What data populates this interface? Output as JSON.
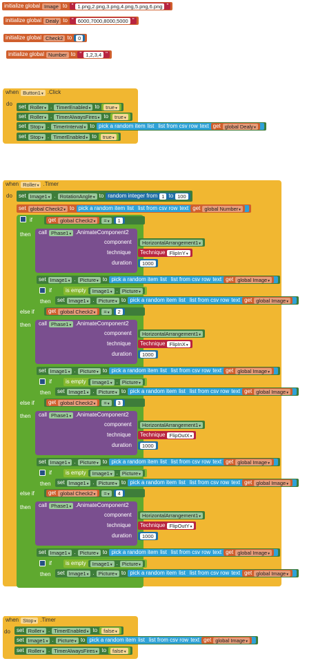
{
  "globals": [
    {
      "prefix": "initialize global",
      "name": "Image",
      "to": "to",
      "value": "1.png,2.png,3.png,4.png,5.png,6.png"
    },
    {
      "prefix": "initialize global",
      "name": "Dealy",
      "to": "to",
      "value": "6000,7000,8000,5000"
    },
    {
      "prefix": "initialize global",
      "name": "Check2",
      "to": "to",
      "value": "0"
    },
    {
      "prefix": "initialize global",
      "name": "Number",
      "to": "to",
      "value": "1,2,3,4"
    }
  ],
  "kw": {
    "when": "when",
    "do": "do",
    "set": "set",
    "to": "to",
    "call": "call",
    "if": "if",
    "then": "then",
    "elseif": "else if",
    "eq": "=",
    "pick": "pick a random item",
    "list": "list",
    "csv": "list from csv row",
    "text": "text",
    "get": "get",
    "isempty": "is empty",
    "randint": "random integer from",
    "component": "component",
    "technique": "technique",
    "duration": "duration",
    "tech_prefix": "Technique"
  },
  "button1": {
    "component": "Button1",
    "event": ".Click",
    "rows": [
      {
        "comp": "Roller",
        "prop": "TimerEnabled",
        "val": "true"
      },
      {
        "comp": "Roller",
        "prop": "TimerAlwaysFires",
        "val": "true"
      },
      {
        "comp": "Stop",
        "prop": "TimerInterval",
        "get": "global Dealy"
      },
      {
        "comp": "Stop",
        "prop": "TimerEnabled",
        "val": "true"
      }
    ]
  },
  "roller": {
    "component": "Roller",
    "event": ".Timer",
    "set_rotation": {
      "comp": "Image1",
      "prop": "RotationAngle",
      "from": "1",
      "to": "100"
    },
    "set_check": {
      "var": "global Check2",
      "get": "global Number"
    },
    "check_get": "global Check2",
    "branches": [
      {
        "n": "1",
        "phase": "Phase1",
        "method": ".AnimateComponent2",
        "comp": "HorizontalArrangement1",
        "tech": "FlipInY",
        "dur": "1000"
      },
      {
        "n": "2",
        "phase": "Phase1",
        "method": ".AnimateComponent2",
        "comp": "HorizontalArrangement1",
        "tech": "FlipInX",
        "dur": "1000"
      },
      {
        "n": "3",
        "phase": "Phase1",
        "method": ".AnimateComponent2",
        "comp": "HorizontalArrangement1",
        "tech": "FlipOutX",
        "dur": "1000"
      },
      {
        "n": "4",
        "phase": "Phase1",
        "method": ".AnimateComponent2",
        "comp": "HorizontalArrangement1",
        "tech": "FlipOutY",
        "dur": "1000"
      }
    ],
    "pic": {
      "comp": "Image1",
      "prop": "Picture",
      "get": "global Image"
    }
  },
  "stop": {
    "component": "Stop",
    "event": ".Timer",
    "rows": [
      {
        "comp": "Roller",
        "prop": "TimerEnabled",
        "val": "false"
      },
      {
        "comp": "Image1",
        "prop": "Picture",
        "get": "global Image"
      },
      {
        "comp": "Roller",
        "prop": "TimerAlwaysFires",
        "val": "false"
      }
    ]
  },
  "colors": {
    "variable": "#d05f2d",
    "component_setter": "#3e7d3a",
    "event": "#f1b731",
    "list": "#2fa2d8",
    "procedure": "#7a4f8f",
    "text": "#b8243f",
    "math": "#1f6ea5",
    "logic": "#86b82f",
    "control": "#5fa92f"
  }
}
